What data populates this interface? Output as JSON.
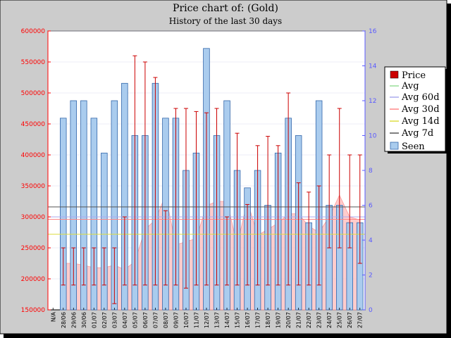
{
  "colors": {
    "frame_bg": "#cccccc",
    "plot_bg": "#ffffff",
    "grid": "#d9d9f0",
    "price": "#cc0000",
    "avg": "#99dd99",
    "avg60d": "#aaaaee",
    "avg30d": "#ff8888",
    "avg14d": "#dddd44",
    "avg7d": "#555555",
    "seen_bar": "#aaccee",
    "seen_bar_edge": "#3366aa",
    "area_fill": "#ffbbbb",
    "left_axis": "#ff0000",
    "right_axis": "#5a5aff"
  },
  "chart_data": {
    "type": "bar",
    "title": "Price chart of: (Gold)",
    "subtitle": "History of the last 30 days",
    "xlabel": "",
    "ylabel": "",
    "x": [
      "N/A",
      "28/06",
      "29/06",
      "30/06",
      "01/07",
      "02/07",
      "03/07",
      "04/07",
      "05/07",
      "06/07",
      "07/07",
      "08/07",
      "09/07",
      "10/07",
      "11/07",
      "12/07",
      "13/07",
      "14/07",
      "15/07",
      "16/07",
      "17/07",
      "18/07",
      "19/07",
      "20/07",
      "21/07",
      "22/07",
      "23/07",
      "24/07",
      "25/07",
      "26/07",
      "27/07"
    ],
    "ylim": [
      150000,
      600000
    ],
    "yticks": [
      150000,
      200000,
      250000,
      300000,
      350000,
      400000,
      450000,
      500000,
      550000,
      600000
    ],
    "y2lim": [
      0,
      16
    ],
    "y2ticks": [
      0,
      2,
      4,
      6,
      8,
      10,
      12,
      14,
      16
    ],
    "grid": true,
    "legend_position": "right",
    "legend": [
      "Price",
      "Avg",
      "Avg 60d",
      "Avg 30d",
      "Avg 14d",
      "Avg 7d",
      "Seen"
    ],
    "seen": [
      null,
      11,
      12,
      12,
      11,
      9,
      12,
      13,
      10,
      10,
      13,
      11,
      11,
      8,
      9,
      15,
      10,
      12,
      8,
      7,
      8,
      6,
      9,
      11,
      10,
      5,
      12,
      6,
      6,
      5,
      5
    ],
    "price_range": [
      null,
      [
        190000,
        250000
      ],
      [
        190000,
        250000
      ],
      [
        190000,
        250000
      ],
      [
        190000,
        250000
      ],
      [
        190000,
        250000
      ],
      [
        160000,
        250000
      ],
      [
        190000,
        300000
      ],
      [
        190000,
        560000
      ],
      [
        190000,
        550000
      ],
      [
        190000,
        525000
      ],
      [
        190000,
        310000
      ],
      [
        190000,
        475000
      ],
      [
        185000,
        475000
      ],
      [
        190000,
        470000
      ],
      [
        190000,
        468000
      ],
      [
        190000,
        475000
      ],
      [
        190000,
        300000
      ],
      [
        190000,
        435000
      ],
      [
        190000,
        320000
      ],
      [
        190000,
        415000
      ],
      [
        190000,
        430000
      ],
      [
        190000,
        415000
      ],
      [
        190000,
        500000
      ],
      [
        190000,
        355000
      ],
      [
        190000,
        340000
      ],
      [
        190000,
        350000
      ],
      [
        250000,
        400000
      ],
      [
        250000,
        475000
      ],
      [
        250000,
        400000
      ],
      [
        225000,
        400000
      ]
    ],
    "price_avg_area": [
      null,
      225000,
      225000,
      222000,
      218000,
      218000,
      222000,
      215000,
      228000,
      280000,
      295000,
      335000,
      255000,
      260000,
      265000,
      318000,
      325000,
      325000,
      255000,
      325000,
      270000,
      280000,
      290000,
      305000,
      305000,
      285000,
      275000,
      300000,
      335000,
      300000,
      295000
    ],
    "reference_lines": [
      {
        "name": "Avg",
        "value": 296000
      },
      {
        "name": "Avg 60d",
        "value": 300000
      },
      {
        "name": "Avg 30d",
        "value": 296000
      },
      {
        "name": "Avg 14d",
        "value": 272000
      },
      {
        "name": "Avg 7d",
        "value": 316000
      }
    ]
  }
}
